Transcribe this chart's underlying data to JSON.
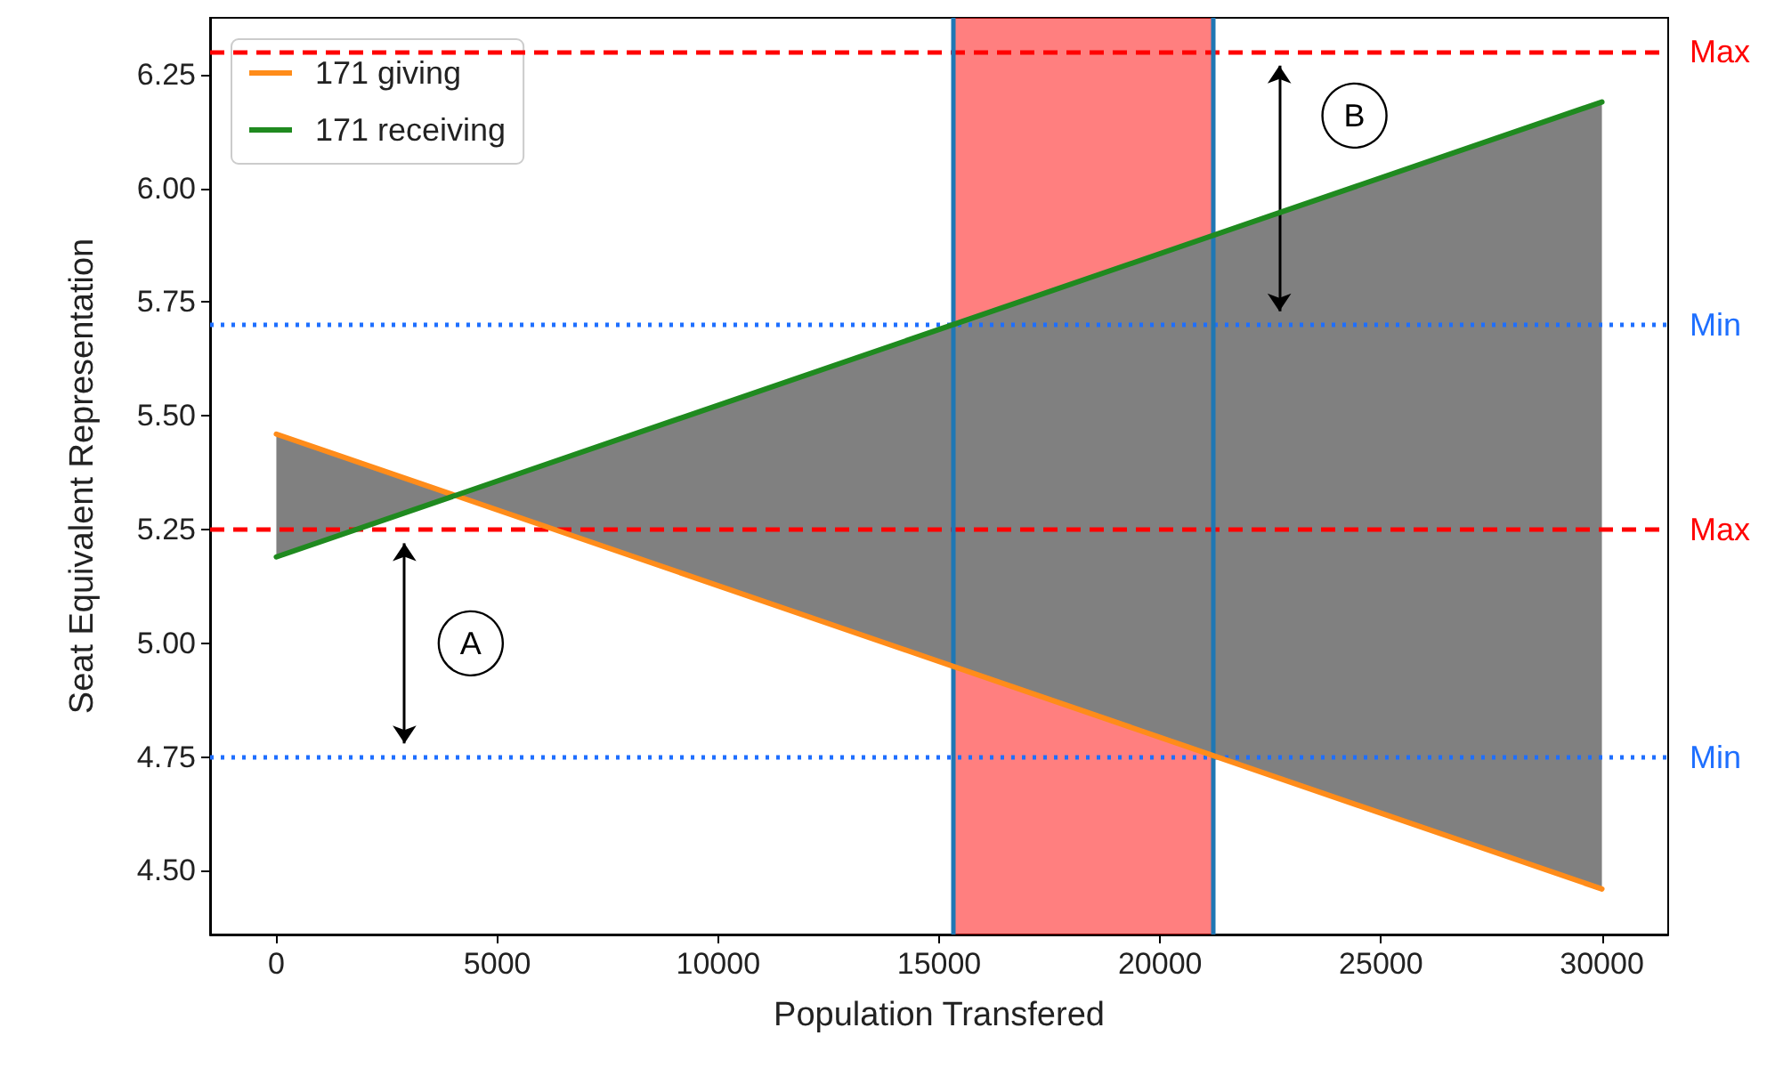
{
  "chart_data": {
    "type": "line",
    "xlabel": "Population Transfered",
    "ylabel": "Seat Equivalent Representation",
    "x": [
      0,
      4050,
      30000
    ],
    "series": [
      {
        "name": "171 giving",
        "color": "#ff8c1a",
        "values": [
          5.46,
          5.325,
          4.46
        ]
      },
      {
        "name": "171 receiving",
        "color": "#1f8a1f",
        "values": [
          5.19,
          5.325,
          6.19
        ],
        "lower": [
          5.19,
          5.325,
          4.46
        ],
        "upper": [
          5.46,
          5.325,
          6.19
        ]
      }
    ],
    "xlim": [
      -1500,
      31500
    ],
    "xticks": [
      0,
      5000,
      10000,
      15000,
      20000,
      25000,
      30000
    ],
    "ylim": [
      4.36,
      6.375
    ],
    "yticks": [
      {
        "value": 4.5,
        "label": "4.50"
      },
      {
        "value": 4.75,
        "label": "4.75"
      },
      {
        "value": 5,
        "label": "5.00"
      },
      {
        "value": 5.25,
        "label": "5.25"
      },
      {
        "value": 5.5,
        "label": "5.50"
      },
      {
        "value": 5.75,
        "label": "5.75"
      },
      {
        "value": 6,
        "label": "6.00"
      },
      {
        "value": 6.25,
        "label": "6.25"
      }
    ],
    "ref_lines": [
      {
        "axis": "y",
        "value": 6.3,
        "label": "Max",
        "color": "#ff0000",
        "line_style": "dashed"
      },
      {
        "axis": "y",
        "value": 5.7,
        "label": "Min",
        "color": "#1e6fff",
        "line_style": "dotted"
      },
      {
        "axis": "y",
        "value": 5.25,
        "label": "Max",
        "color": "#ff0000",
        "line_style": "dashed"
      },
      {
        "axis": "y",
        "value": 4.75,
        "label": "Min",
        "color": "#1e6fff",
        "line_style": "dotted"
      },
      {
        "axis": "x",
        "value": 15300,
        "color": "#1f77b4",
        "line_style": "solid"
      },
      {
        "axis": "x",
        "value": 21200,
        "color": "#1f77b4",
        "line_style": "solid"
      }
    ],
    "bands": [
      {
        "axis": "x",
        "from": 15300,
        "to": 21200,
        "color": "#ff0000"
      }
    ],
    "annotations": [
      "A",
      "B"
    ],
    "legend": "top left",
    "grid": false
  }
}
